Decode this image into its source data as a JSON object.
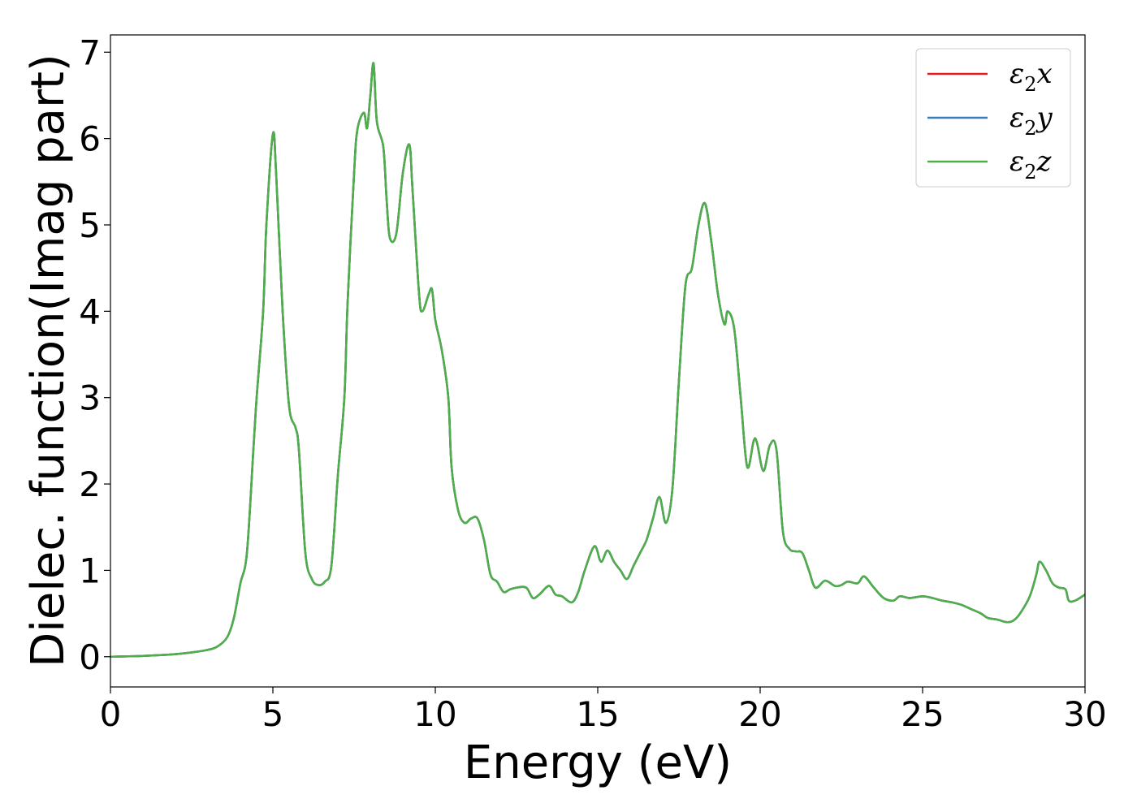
{
  "chart_data": {
    "type": "line",
    "title": "",
    "xlabel": "Energy (eV)",
    "ylabel": "Dielec. function(Imag part)",
    "xlim": [
      0,
      30
    ],
    "ylim": [
      -0.35,
      7.2
    ],
    "xticks": [
      0,
      5,
      10,
      15,
      20,
      25,
      30
    ],
    "xtick_labels": [
      "0",
      "5",
      "10",
      "15",
      "20",
      "25",
      "30"
    ],
    "yticks": [
      0,
      1,
      2,
      3,
      4,
      5,
      6,
      7
    ],
    "ytick_labels": [
      "0",
      "1",
      "2",
      "3",
      "4",
      "5",
      "6",
      "7"
    ],
    "grid": false,
    "legend_position": "top-right",
    "x": [
      0,
      1,
      2,
      2.5,
      3,
      3.3,
      3.6,
      3.8,
      4.0,
      4.2,
      4.4,
      4.5,
      4.7,
      4.8,
      5.0,
      5.1,
      5.3,
      5.5,
      5.7,
      5.8,
      6.0,
      6.2,
      6.4,
      6.6,
      6.8,
      7.0,
      7.2,
      7.3,
      7.5,
      7.6,
      7.8,
      7.9,
      8.0,
      8.1,
      8.2,
      8.4,
      8.5,
      8.6,
      8.8,
      9.0,
      9.2,
      9.3,
      9.5,
      9.6,
      9.8,
      9.9,
      10.0,
      10.2,
      10.4,
      10.5,
      10.7,
      10.9,
      11.1,
      11.3,
      11.5,
      11.7,
      11.9,
      12.1,
      12.3,
      12.5,
      12.8,
      13.0,
      13.2,
      13.5,
      13.7,
      13.9,
      14.2,
      14.4,
      14.6,
      14.9,
      15.1,
      15.3,
      15.5,
      15.7,
      15.9,
      16.1,
      16.3,
      16.5,
      16.7,
      16.9,
      17.1,
      17.3,
      17.5,
      17.7,
      17.9,
      18.1,
      18.3,
      18.5,
      18.7,
      18.9,
      19.0,
      19.2,
      19.4,
      19.6,
      19.8,
      19.9,
      20.1,
      20.3,
      20.5,
      20.7,
      20.9,
      21.1,
      21.3,
      21.5,
      21.7,
      22.0,
      22.3,
      22.5,
      22.7,
      23.0,
      23.2,
      23.5,
      23.8,
      24.1,
      24.3,
      24.6,
      25.0,
      25.3,
      25.6,
      25.9,
      26.2,
      26.5,
      26.8,
      27.0,
      27.3,
      27.6,
      27.8,
      28.0,
      28.3,
      28.5,
      28.6,
      28.8,
      29.0,
      29.2,
      29.4,
      29.5,
      29.7,
      30.0
    ],
    "series": [
      {
        "name": "ε2x",
        "color": "#e41a1c",
        "values": [
          0.0,
          0.01,
          0.03,
          0.05,
          0.08,
          0.12,
          0.23,
          0.45,
          0.85,
          1.2,
          2.4,
          3.0,
          4.0,
          5.0,
          6.05,
          5.6,
          4.0,
          2.9,
          2.65,
          2.4,
          1.2,
          0.9,
          0.83,
          0.87,
          1.05,
          2.1,
          3.0,
          4.1,
          5.6,
          6.1,
          6.3,
          6.12,
          6.5,
          6.87,
          6.2,
          5.9,
          5.3,
          4.85,
          4.9,
          5.6,
          5.93,
          5.4,
          4.2,
          4.0,
          4.2,
          4.25,
          3.9,
          3.55,
          3.0,
          2.2,
          1.7,
          1.55,
          1.6,
          1.6,
          1.35,
          0.95,
          0.87,
          0.75,
          0.78,
          0.8,
          0.8,
          0.68,
          0.72,
          0.82,
          0.72,
          0.7,
          0.63,
          0.75,
          1.0,
          1.28,
          1.1,
          1.23,
          1.1,
          1.0,
          0.9,
          1.05,
          1.2,
          1.35,
          1.6,
          1.85,
          1.55,
          1.95,
          3.2,
          4.3,
          4.5,
          5.0,
          5.25,
          4.8,
          4.2,
          3.85,
          4.0,
          3.8,
          3.0,
          2.2,
          2.5,
          2.48,
          2.15,
          2.45,
          2.4,
          1.45,
          1.25,
          1.22,
          1.2,
          1.0,
          0.8,
          0.88,
          0.82,
          0.83,
          0.87,
          0.85,
          0.93,
          0.8,
          0.68,
          0.65,
          0.7,
          0.68,
          0.7,
          0.68,
          0.65,
          0.63,
          0.6,
          0.55,
          0.5,
          0.45,
          0.43,
          0.4,
          0.42,
          0.5,
          0.7,
          0.95,
          1.1,
          1.0,
          0.85,
          0.8,
          0.78,
          0.65,
          0.65,
          0.72
        ]
      },
      {
        "name": "ε2y",
        "color": "#377eb8",
        "values": [
          0.0,
          0.01,
          0.03,
          0.05,
          0.08,
          0.12,
          0.23,
          0.45,
          0.85,
          1.2,
          2.4,
          3.0,
          4.0,
          5.0,
          6.05,
          5.6,
          4.0,
          2.9,
          2.65,
          2.4,
          1.2,
          0.9,
          0.83,
          0.87,
          1.05,
          2.1,
          3.0,
          4.1,
          5.6,
          6.1,
          6.3,
          6.12,
          6.5,
          6.87,
          6.2,
          5.9,
          5.3,
          4.85,
          4.9,
          5.6,
          5.93,
          5.4,
          4.2,
          4.0,
          4.2,
          4.25,
          3.9,
          3.55,
          3.0,
          2.2,
          1.7,
          1.55,
          1.6,
          1.6,
          1.35,
          0.95,
          0.87,
          0.75,
          0.78,
          0.8,
          0.8,
          0.68,
          0.72,
          0.82,
          0.72,
          0.7,
          0.63,
          0.75,
          1.0,
          1.28,
          1.1,
          1.23,
          1.1,
          1.0,
          0.9,
          1.05,
          1.2,
          1.35,
          1.6,
          1.85,
          1.55,
          1.95,
          3.2,
          4.3,
          4.5,
          5.0,
          5.25,
          4.8,
          4.2,
          3.85,
          4.0,
          3.8,
          3.0,
          2.2,
          2.5,
          2.48,
          2.15,
          2.45,
          2.4,
          1.45,
          1.25,
          1.22,
          1.2,
          1.0,
          0.8,
          0.88,
          0.82,
          0.83,
          0.87,
          0.85,
          0.93,
          0.8,
          0.68,
          0.65,
          0.7,
          0.68,
          0.7,
          0.68,
          0.65,
          0.63,
          0.6,
          0.55,
          0.5,
          0.45,
          0.43,
          0.4,
          0.42,
          0.5,
          0.7,
          0.95,
          1.1,
          1.0,
          0.85,
          0.8,
          0.78,
          0.65,
          0.65,
          0.72
        ]
      },
      {
        "name": "ε2z",
        "color": "#4daf4a",
        "values": [
          0.0,
          0.01,
          0.03,
          0.05,
          0.08,
          0.12,
          0.23,
          0.45,
          0.85,
          1.2,
          2.4,
          3.0,
          4.0,
          5.0,
          6.05,
          5.6,
          4.0,
          2.9,
          2.65,
          2.4,
          1.2,
          0.9,
          0.83,
          0.87,
          1.05,
          2.1,
          3.0,
          4.1,
          5.6,
          6.1,
          6.3,
          6.12,
          6.5,
          6.87,
          6.2,
          5.9,
          5.3,
          4.85,
          4.9,
          5.6,
          5.93,
          5.4,
          4.2,
          4.0,
          4.2,
          4.25,
          3.9,
          3.55,
          3.0,
          2.2,
          1.7,
          1.55,
          1.6,
          1.6,
          1.35,
          0.95,
          0.87,
          0.75,
          0.78,
          0.8,
          0.8,
          0.68,
          0.72,
          0.82,
          0.72,
          0.7,
          0.63,
          0.75,
          1.0,
          1.28,
          1.1,
          1.23,
          1.1,
          1.0,
          0.9,
          1.05,
          1.2,
          1.35,
          1.6,
          1.85,
          1.55,
          1.95,
          3.2,
          4.3,
          4.5,
          5.0,
          5.25,
          4.8,
          4.2,
          3.85,
          4.0,
          3.8,
          3.0,
          2.2,
          2.5,
          2.48,
          2.15,
          2.45,
          2.4,
          1.45,
          1.25,
          1.22,
          1.2,
          1.0,
          0.8,
          0.88,
          0.82,
          0.83,
          0.87,
          0.85,
          0.93,
          0.8,
          0.68,
          0.65,
          0.7,
          0.68,
          0.7,
          0.68,
          0.65,
          0.63,
          0.6,
          0.55,
          0.5,
          0.45,
          0.43,
          0.4,
          0.42,
          0.5,
          0.7,
          0.95,
          1.1,
          1.0,
          0.85,
          0.8,
          0.78,
          0.65,
          0.65,
          0.72
        ]
      }
    ],
    "legend": [
      {
        "symbol": "ε",
        "sub": "2",
        "axis": "x"
      },
      {
        "symbol": "ε",
        "sub": "2",
        "axis": "y"
      },
      {
        "symbol": "ε",
        "sub": "2",
        "axis": "z"
      }
    ]
  }
}
